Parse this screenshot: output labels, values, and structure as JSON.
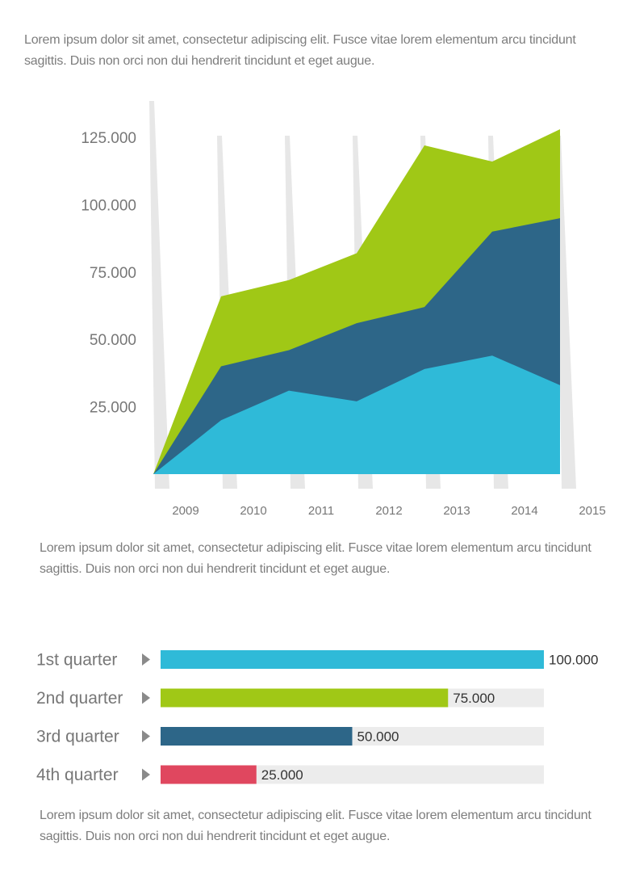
{
  "paragraphs": {
    "top": [
      "Lorem ipsum dolor sit amet, consectetur adipiscing elit. Fusce vitae lorem elementum arcu tincidunt",
      "sagittis. Duis non orci non dui hendrerit tincidunt et eget augue."
    ],
    "middle": [
      "Lorem ipsum dolor sit amet, consectetur adipiscing elit. Fusce vitae lorem elementum arcu tincidunt",
      "sagittis. Duis non orci non dui hendrerit tincidunt et eget augue."
    ],
    "bottom": [
      "Lorem ipsum dolor sit amet, consectetur adipiscing elit. Fusce vitae lorem elementum arcu tincidunt",
      "sagittis. Duis non orci non dui hendrerit tincidunt et eget augue."
    ]
  },
  "chart_data": [
    {
      "type": "area",
      "stacked": false,
      "x": [
        "2009",
        "2010",
        "2011",
        "2012",
        "2013",
        "2014",
        "2015"
      ],
      "y_ticks": [
        "25.000",
        "50.000",
        "75.000",
        "100.000",
        "125.000"
      ],
      "ylim": [
        0,
        130000
      ],
      "grid": false,
      "series": [
        {
          "color": "#a0c816",
          "values": [
            0,
            66000,
            72000,
            82000,
            122000,
            116000,
            128000
          ]
        },
        {
          "color": "#2d6688",
          "values": [
            0,
            40000,
            46000,
            56000,
            62000,
            90000,
            95000
          ]
        },
        {
          "color": "#2fbad8",
          "values": [
            0,
            20000,
            31000,
            27000,
            39000,
            44000,
            33000
          ]
        }
      ]
    },
    {
      "type": "bar",
      "orientation": "horizontal",
      "max": 100000,
      "categories": [
        "1st quarter",
        "2nd quarter",
        "3rd quarter",
        "4th quarter"
      ],
      "values": [
        100000,
        75000,
        50000,
        25000
      ],
      "value_labels": [
        "100.000",
        "75.000",
        "50.000",
        "25.000"
      ],
      "colors": [
        "#2fbad8",
        "#a0c816",
        "#2d6688",
        "#e0475f"
      ],
      "track_color": "#ececec"
    }
  ]
}
